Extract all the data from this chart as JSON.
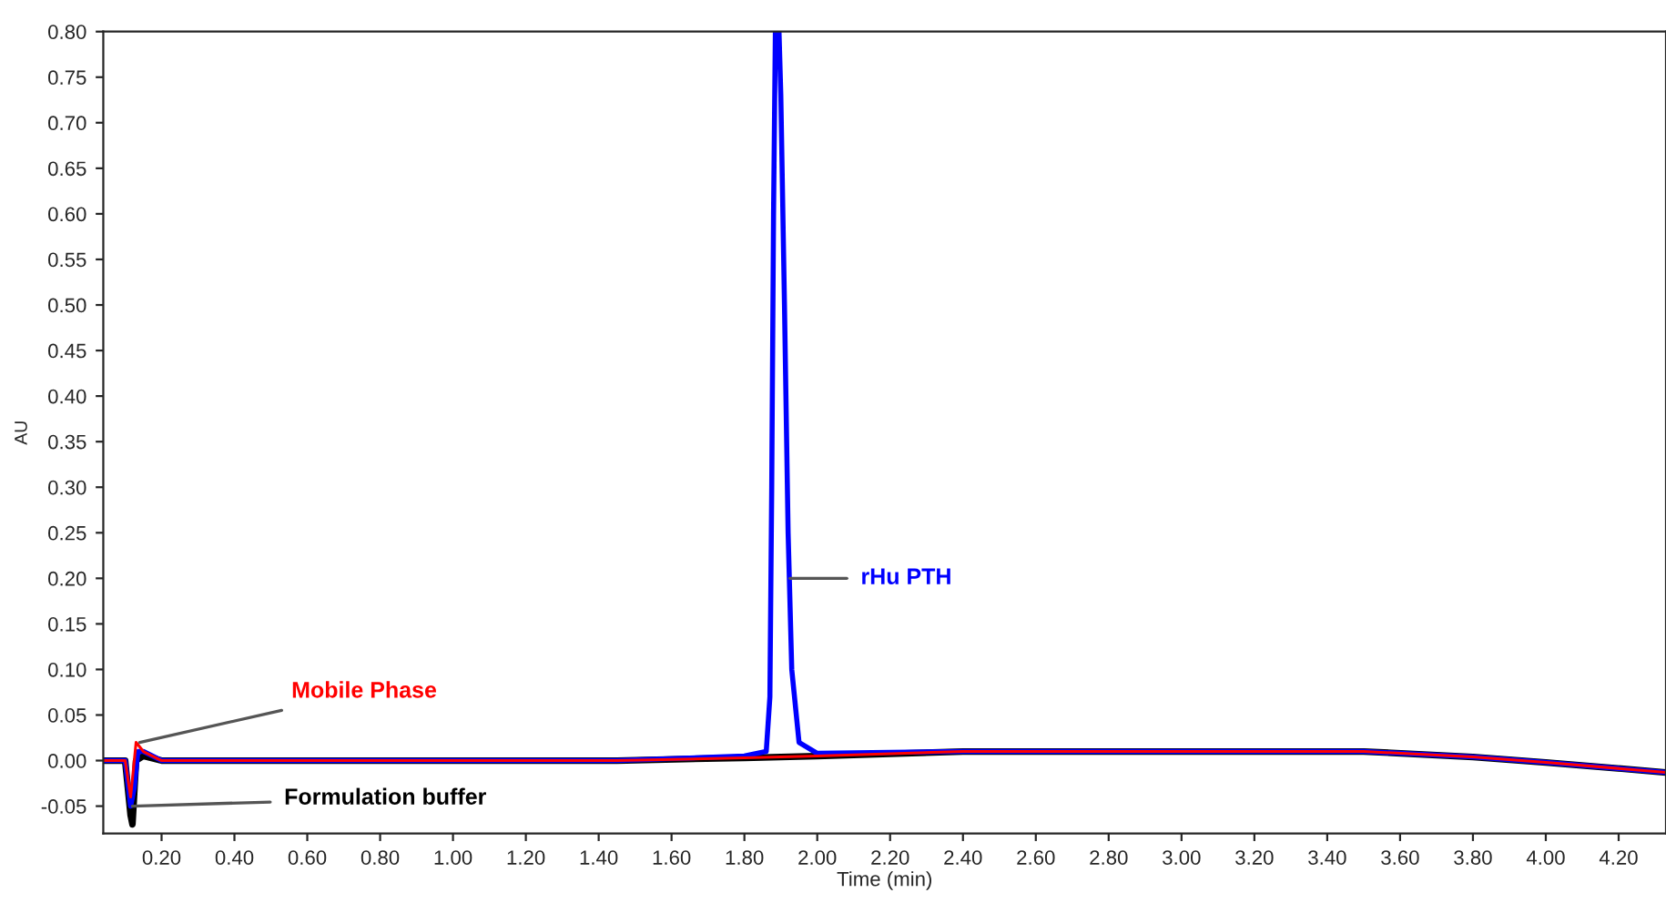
{
  "chart_data": {
    "type": "line",
    "xlabel": "Time (min)",
    "ylabel": "AU",
    "xlim": [
      0.04,
      4.33
    ],
    "ylim": [
      -0.08,
      0.8
    ],
    "xticks": [
      {
        "value": 0.2,
        "label": "0.20"
      },
      {
        "value": 0.4,
        "label": "0.40"
      },
      {
        "value": 0.6,
        "label": "0.60"
      },
      {
        "value": 0.8,
        "label": "0.80"
      },
      {
        "value": 1.0,
        "label": "1.00"
      },
      {
        "value": 1.2,
        "label": "1.20"
      },
      {
        "value": 1.4,
        "label": "1.40"
      },
      {
        "value": 1.6,
        "label": "1.60"
      },
      {
        "value": 1.8,
        "label": "1.80"
      },
      {
        "value": 2.0,
        "label": "2.00"
      },
      {
        "value": 2.2,
        "label": "2.20"
      },
      {
        "value": 2.4,
        "label": "2.40"
      },
      {
        "value": 2.6,
        "label": "2.60"
      },
      {
        "value": 2.8,
        "label": "2.80"
      },
      {
        "value": 3.0,
        "label": "3.00"
      },
      {
        "value": 3.2,
        "label": "3.20"
      },
      {
        "value": 3.4,
        "label": "3.40"
      },
      {
        "value": 3.6,
        "label": "3.60"
      },
      {
        "value": 3.8,
        "label": "3.80"
      },
      {
        "value": 4.0,
        "label": "4.00"
      },
      {
        "value": 4.2,
        "label": "4.20"
      }
    ],
    "yticks": [
      {
        "value": -0.05,
        "label": "-0.05"
      },
      {
        "value": 0,
        "label": "0.00"
      },
      {
        "value": 0.05,
        "label": "0.05"
      },
      {
        "value": 0.1,
        "label": "0.10"
      },
      {
        "value": 0.15,
        "label": "0.15"
      },
      {
        "value": 0.2,
        "label": "0.20"
      },
      {
        "value": 0.25,
        "label": "0.25"
      },
      {
        "value": 0.3,
        "label": "0.30"
      },
      {
        "value": 0.35,
        "label": "0.35"
      },
      {
        "value": 0.4,
        "label": "0.40"
      },
      {
        "value": 0.45,
        "label": "0.45"
      },
      {
        "value": 0.5,
        "label": "0.50"
      },
      {
        "value": 0.55,
        "label": "0.55"
      },
      {
        "value": 0.6,
        "label": "0.60"
      },
      {
        "value": 0.65,
        "label": "0.65"
      },
      {
        "value": 0.7,
        "label": "0.70"
      },
      {
        "value": 0.75,
        "label": "0.75"
      },
      {
        "value": 0.8,
        "label": "0.80"
      }
    ],
    "grid": false,
    "marker": "none",
    "line_style": "solid",
    "series": [
      {
        "color": "#0000ff",
        "x": [
          0.04,
          0.1,
          0.115,
          0.125,
          0.135,
          0.15,
          0.2,
          1.45,
          1.8,
          1.86,
          1.87,
          1.875,
          1.88,
          1.885,
          1.895,
          1.9,
          1.91,
          1.92,
          1.93,
          1.95,
          2.0,
          2.4,
          3.5,
          3.8,
          4.0,
          4.33
        ],
        "values": [
          0,
          0,
          -0.05,
          -0.03,
          0.01,
          0.01,
          0,
          0,
          0.005,
          0.01,
          0.07,
          0.3,
          0.6,
          0.8,
          0.8,
          0.73,
          0.5,
          0.25,
          0.1,
          0.02,
          0.008,
          0.01,
          0.01,
          0.004,
          -0.002,
          -0.013
        ]
      },
      {
        "color": "#ff0000",
        "x": [
          0.04,
          0.1,
          0.115,
          0.125,
          0.13,
          0.15,
          0.2,
          1.45,
          1.8,
          2.0,
          2.4,
          3.5,
          3.8,
          4.0,
          4.33
        ],
        "values": [
          0,
          0,
          -0.04,
          0.0,
          0.02,
          0.01,
          0,
          0,
          0.003,
          0.005,
          0.01,
          0.01,
          0.004,
          -0.002,
          -0.013
        ]
      },
      {
        "color": "#000000",
        "x": [
          0.04,
          0.1,
          0.115,
          0.12,
          0.13,
          0.15,
          0.2,
          1.45,
          1.8,
          2.0,
          2.4,
          3.5,
          3.8,
          4.0,
          4.33
        ],
        "values": [
          0,
          0,
          -0.06,
          -0.07,
          0.0,
          0.005,
          0,
          0,
          0.003,
          0.005,
          0.01,
          0.01,
          0.004,
          -0.002,
          -0.013
        ]
      }
    ],
    "annotations": [
      {
        "text": "rHu PTH",
        "x": 1.925,
        "y": 0.2
      },
      {
        "text": "Mobile Phase",
        "x": 0.14,
        "y": 0.02
      },
      {
        "text": "Formulation buffer",
        "x": 0.12,
        "y": -0.05
      }
    ]
  }
}
